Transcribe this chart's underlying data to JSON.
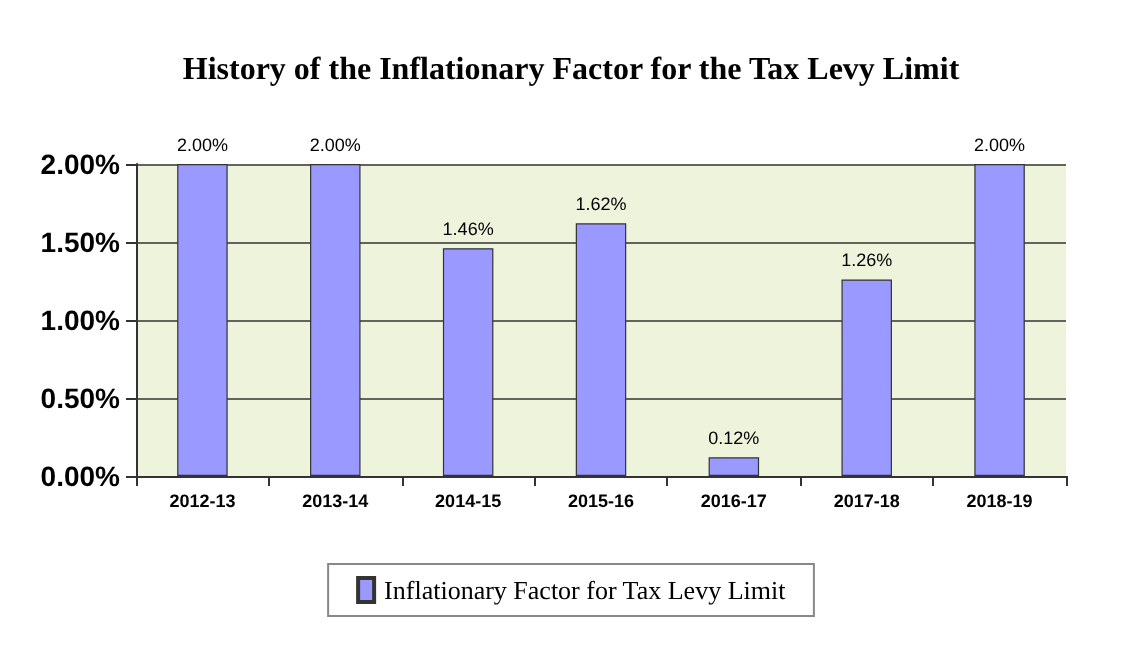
{
  "chart_data": {
    "type": "bar",
    "title": "History of the Inflationary Factor for the Tax Levy Limit",
    "categories": [
      "2012-13",
      "2013-14",
      "2014-15",
      "2015-16",
      "2016-17",
      "2017-18",
      "2018-19"
    ],
    "series": [
      {
        "name": "Inflationary Factor for Tax Levy Limit",
        "color": "#9999ff",
        "values": [
          2.0,
          2.0,
          1.46,
          1.62,
          0.12,
          1.26,
          2.0
        ],
        "value_labels": [
          "2.00%",
          "2.00%",
          "1.46%",
          "1.62%",
          "0.12%",
          "1.26%",
          "2.00%"
        ]
      }
    ],
    "ylim": [
      0,
      2
    ],
    "yticks": [
      {
        "value": 0,
        "label": "0.00%"
      },
      {
        "value": 0.5,
        "label": "0.50%"
      },
      {
        "value": 1,
        "label": "1.00%"
      },
      {
        "value": 1.5,
        "label": "1.50%"
      },
      {
        "value": 2,
        "label": "2.00%"
      }
    ],
    "grid": "y",
    "legend": "bottom"
  }
}
